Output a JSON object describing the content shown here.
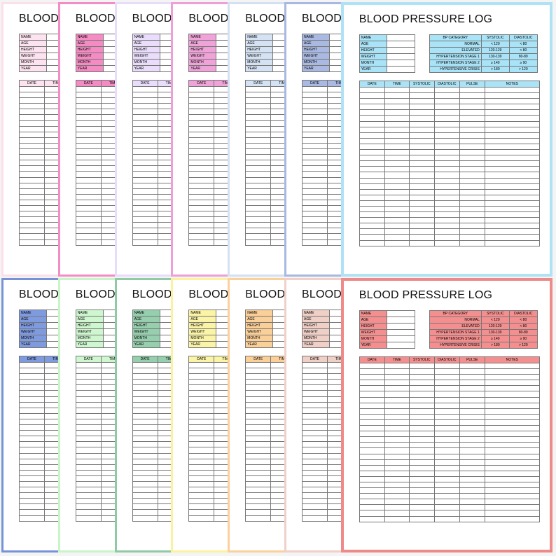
{
  "document": {
    "title": "BLOOD PRESSURE LOG",
    "info_labels": [
      "NAME",
      "AGE",
      "HEIGHT",
      "WEIGHT",
      "MONTH",
      "YEAR"
    ],
    "bp_headers": [
      "BP CATEGORY",
      "SYSTOLIC",
      "DIASTOLIC"
    ],
    "bp_rows": [
      {
        "category": "NORMAL",
        "systolic": "< 120",
        "diastolic": "< 80"
      },
      {
        "category": "ELEVATED",
        "systolic": "120-129",
        "diastolic": "< 80"
      },
      {
        "category": "HYPERTENSION STAGE 1",
        "systolic": "130-139",
        "diastolic": "80-89"
      },
      {
        "category": "HYPERTENSION STAGE 2",
        "systolic": "≥ 140",
        "diastolic": "≥ 90"
      },
      {
        "category": "HYPERTENSIVE CRISIS",
        "systolic": "> 180",
        "diastolic": "> 120"
      }
    ],
    "log_headers": [
      "DATE",
      "TIME",
      "SYSTOLIC",
      "DIASTOLIC",
      "PULSE",
      "NOTES"
    ]
  },
  "pages": [
    {
      "id": "light-pink",
      "color": "#fde3ef",
      "border": "#fbe0ec",
      "row": 0,
      "visible": "partial"
    },
    {
      "id": "hot-pink",
      "color": "#f58bc3",
      "border": "#f48dc4",
      "row": 0,
      "visible": "partial"
    },
    {
      "id": "lavender",
      "color": "#e9ddfb",
      "border": "#e8dcfb",
      "row": 0,
      "visible": "partial"
    },
    {
      "id": "orchid",
      "color": "#efa3d8",
      "border": "#ee9fd6",
      "row": 0,
      "visible": "partial"
    },
    {
      "id": "powder-blue",
      "color": "#d4e2f3",
      "border": "#d3e1f2",
      "row": 0,
      "visible": "partial"
    },
    {
      "id": "periwinkle",
      "color": "#a9b9e2",
      "border": "#a8b8e2",
      "row": 0,
      "visible": "partial"
    },
    {
      "id": "sky-blue",
      "color": "#a9e3f7",
      "border": "#b0e2f5",
      "row": 0,
      "visible": "full"
    },
    {
      "id": "royal-blue",
      "color": "#7f9be0",
      "border": "#7693d8",
      "row": 1,
      "visible": "partial"
    },
    {
      "id": "mint",
      "color": "#cff7cf",
      "border": "#c8f4c8",
      "row": 1,
      "visible": "partial"
    },
    {
      "id": "sage",
      "color": "#95cfae",
      "border": "#90c9a6",
      "row": 1,
      "visible": "partial"
    },
    {
      "id": "butter",
      "color": "#fbf4a6",
      "border": "#fbf2a0",
      "row": 1,
      "visible": "partial"
    },
    {
      "id": "peach",
      "color": "#fbcf98",
      "border": "#fbd09a",
      "row": 1,
      "visible": "partial"
    },
    {
      "id": "blush",
      "color": "#efcfc6",
      "border": "#f0d0c8",
      "row": 1,
      "visible": "partial"
    },
    {
      "id": "coral",
      "color": "#f58f8f",
      "border": "#ef8a8a",
      "row": 1,
      "visible": "full"
    }
  ]
}
